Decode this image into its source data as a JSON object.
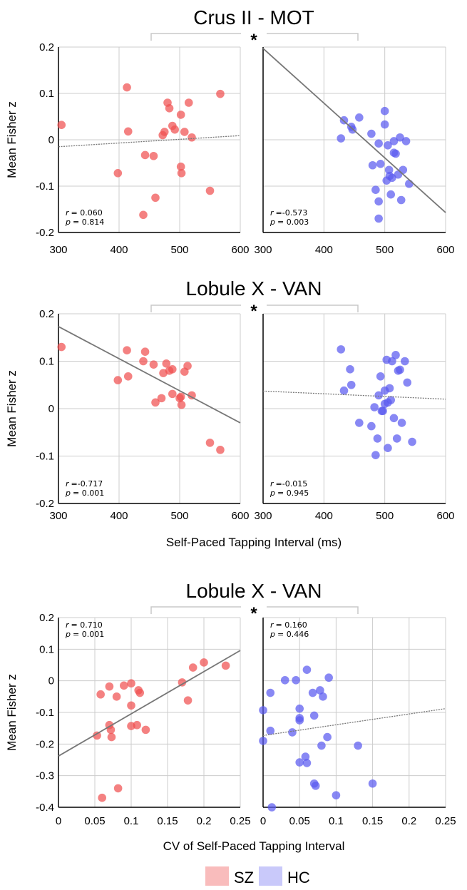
{
  "legend": [
    {
      "label": "SZ",
      "color": "#f9bcbc"
    },
    {
      "label": "HC",
      "color": "#c9c9fa"
    }
  ],
  "colors": {
    "SZ": "#f05050",
    "HC": "#5a5af0",
    "fit_line": "#777777",
    "grid": "#cccccc",
    "bracket": "#c8c8c8"
  },
  "star": "*",
  "chart_data": [
    {
      "type": "scatter",
      "title": "Crus II - MOT",
      "ylabel": "Mean Fisher z",
      "xlabel": "",
      "xlim": [
        300,
        600
      ],
      "ylim": [
        -0.2,
        0.2
      ],
      "xticks": [
        "300",
        "400",
        "500",
        "600"
      ],
      "yticks": [
        "0.2",
        "0.1",
        "0",
        "-0.1",
        "-0.2"
      ],
      "grid": true,
      "significance": "*",
      "panels": [
        {
          "group": "SZ",
          "r_label": "r",
          "r_value": "= 0.060",
          "p_label": "p",
          "p_value": "= 0.814",
          "fit": {
            "x": [
              300,
              600
            ],
            "y": [
              -0.015,
              0.009
            ],
            "style": "dotted"
          },
          "points": [
            [
              305,
              0.032
            ],
            [
              398,
              -0.072
            ],
            [
              413,
              0.113
            ],
            [
              415,
              0.018
            ],
            [
              440,
              -0.162
            ],
            [
              443,
              -0.033
            ],
            [
              457,
              -0.035
            ],
            [
              460,
              -0.125
            ],
            [
              472,
              0.01
            ],
            [
              475,
              0.017
            ],
            [
              480,
              0.08
            ],
            [
              483,
              0.068
            ],
            [
              488,
              0.03
            ],
            [
              492,
              0.022
            ],
            [
              502,
              0.054
            ],
            [
              502,
              -0.058
            ],
            [
              503,
              -0.072
            ],
            [
              508,
              0.017
            ],
            [
              515,
              0.08
            ],
            [
              520,
              0.005
            ],
            [
              550,
              -0.11
            ],
            [
              567,
              0.099
            ]
          ]
        },
        {
          "group": "HC",
          "r_label": "r",
          "r_value": "=-0.573",
          "p_label": "p",
          "p_value": "= 0.003",
          "fit": {
            "x": [
              300,
              600
            ],
            "y": [
              0.197,
              -0.157
            ],
            "style": "solid"
          },
          "points": [
            [
              428,
              0.003
            ],
            [
              433,
              0.042
            ],
            [
              445,
              0.028
            ],
            [
              447,
              0.022
            ],
            [
              458,
              0.048
            ],
            [
              478,
              0.013
            ],
            [
              480,
              -0.055
            ],
            [
              485,
              -0.108
            ],
            [
              490,
              -0.008
            ],
            [
              490,
              -0.133
            ],
            [
              490,
              -0.17
            ],
            [
              493,
              -0.052
            ],
            [
              500,
              0.062
            ],
            [
              500,
              0.033
            ],
            [
              503,
              -0.088
            ],
            [
              505,
              -0.012
            ],
            [
              507,
              -0.065
            ],
            [
              508,
              -0.078
            ],
            [
              510,
              -0.118
            ],
            [
              512,
              -0.082
            ],
            [
              515,
              -0.003
            ],
            [
              515,
              -0.028
            ],
            [
              518,
              -0.03
            ],
            [
              522,
              -0.075
            ],
            [
              525,
              0.005
            ],
            [
              527,
              -0.13
            ],
            [
              530,
              -0.065
            ],
            [
              535,
              -0.003
            ],
            [
              540,
              -0.095
            ]
          ]
        }
      ]
    },
    {
      "type": "scatter",
      "title": "Lobule X - VAN",
      "ylabel": "Mean Fisher z",
      "xlabel": "Self-Paced Tapping Interval (ms)",
      "xlim": [
        300,
        600
      ],
      "ylim": [
        -0.2,
        0.2
      ],
      "xticks": [
        "300",
        "400",
        "500",
        "600"
      ],
      "yticks": [
        "0.2",
        "0.1",
        "0",
        "-0.1",
        "-0.2"
      ],
      "grid": true,
      "significance": "*",
      "panels": [
        {
          "group": "SZ",
          "r_label": "r",
          "r_value": "=-0.717",
          "p_label": "p",
          "p_value": "= 0.001",
          "fit": {
            "x": [
              300,
              600
            ],
            "y": [
              0.173,
              -0.03
            ],
            "style": "solid"
          },
          "points": [
            [
              305,
              0.13
            ],
            [
              398,
              0.06
            ],
            [
              413,
              0.123
            ],
            [
              415,
              0.068
            ],
            [
              440,
              0.1
            ],
            [
              443,
              0.12
            ],
            [
              457,
              0.093
            ],
            [
              460,
              0.013
            ],
            [
              470,
              0.022
            ],
            [
              473,
              0.075
            ],
            [
              478,
              0.095
            ],
            [
              483,
              0.08
            ],
            [
              488,
              0.083
            ],
            [
              488,
              0.031
            ],
            [
              500,
              0.022
            ],
            [
              502,
              0.025
            ],
            [
              503,
              0.008
            ],
            [
              508,
              0.078
            ],
            [
              513,
              0.09
            ],
            [
              520,
              0.028
            ],
            [
              550,
              -0.072
            ],
            [
              567,
              -0.087
            ]
          ]
        },
        {
          "group": "HC",
          "r_label": "r",
          "r_value": "=-0.015",
          "p_label": "p",
          "p_value": "= 0.945",
          "fit": {
            "x": [
              300,
              600
            ],
            "y": [
              0.037,
              0.02
            ],
            "style": "dotted"
          },
          "points": [
            [
              428,
              0.125
            ],
            [
              433,
              0.038
            ],
            [
              443,
              0.083
            ],
            [
              445,
              0.05
            ],
            [
              458,
              -0.03
            ],
            [
              478,
              -0.037
            ],
            [
              483,
              0.003
            ],
            [
              485,
              -0.098
            ],
            [
              488,
              -0.063
            ],
            [
              490,
              0.028
            ],
            [
              493,
              0.068
            ],
            [
              495,
              -0.005
            ],
            [
              497,
              -0.005
            ],
            [
              500,
              0.038
            ],
            [
              500,
              0.01
            ],
            [
              503,
              0.103
            ],
            [
              505,
              0.013
            ],
            [
              505,
              -0.083
            ],
            [
              508,
              0.043
            ],
            [
              510,
              0.018
            ],
            [
              512,
              0.1
            ],
            [
              515,
              -0.02
            ],
            [
              518,
              0.113
            ],
            [
              520,
              -0.063
            ],
            [
              522,
              0.08
            ],
            [
              525,
              0.082
            ],
            [
              528,
              -0.03
            ],
            [
              533,
              0.1
            ],
            [
              537,
              0.055
            ],
            [
              545,
              -0.07
            ]
          ]
        }
      ]
    },
    {
      "type": "scatter",
      "title": "Lobule X - VAN",
      "ylabel": "Mean Fisher z",
      "xlabel": "CV of Self-Paced Tapping Interval",
      "xlim": [
        0,
        0.25
      ],
      "ylim": [
        -0.4,
        0.2
      ],
      "xticks": [
        "0",
        "0.05",
        "0.1",
        "0.15",
        "0.2",
        "0.25"
      ],
      "yticks": [
        "0.2",
        "0.1",
        "0",
        "-0.1",
        "-0.2",
        "-0.3",
        "-0.4"
      ],
      "grid": true,
      "significance": "*",
      "panels": [
        {
          "group": "SZ",
          "r_label": "r",
          "r_value": "= 0.710",
          "p_label": "p",
          "p_value": "= 0.001",
          "fit": {
            "x": [
              0,
              0.25
            ],
            "y": [
              -0.238,
              0.096
            ],
            "style": "solid"
          },
          "points": [
            [
              0.053,
              -0.173
            ],
            [
              0.058,
              -0.043
            ],
            [
              0.06,
              -0.37
            ],
            [
              0.07,
              -0.018
            ],
            [
              0.07,
              -0.14
            ],
            [
              0.072,
              -0.155
            ],
            [
              0.073,
              -0.178
            ],
            [
              0.08,
              -0.05
            ],
            [
              0.082,
              -0.34
            ],
            [
              0.09,
              -0.015
            ],
            [
              0.1,
              -0.008
            ],
            [
              0.1,
              -0.078
            ],
            [
              0.1,
              -0.143
            ],
            [
              0.108,
              -0.14
            ],
            [
              0.11,
              -0.03
            ],
            [
              0.112,
              -0.038
            ],
            [
              0.12,
              -0.155
            ],
            [
              0.17,
              -0.005
            ],
            [
              0.178,
              -0.062
            ],
            [
              0.185,
              0.042
            ],
            [
              0.2,
              0.058
            ],
            [
              0.23,
              0.048
            ]
          ]
        },
        {
          "group": "HC",
          "r_label": "r",
          "r_value": "= 0.160",
          "p_label": "p",
          "p_value": "= 0.446",
          "fit": {
            "x": [
              0,
              0.25
            ],
            "y": [
              -0.173,
              -0.088
            ],
            "style": "dotted"
          },
          "points": [
            [
              0.0,
              -0.093
            ],
            [
              0.0,
              -0.19
            ],
            [
              0.01,
              -0.038
            ],
            [
              0.01,
              -0.158
            ],
            [
              0.012,
              -0.4
            ],
            [
              0.03,
              0.002
            ],
            [
              0.04,
              -0.163
            ],
            [
              0.045,
              0.002
            ],
            [
              0.05,
              -0.088
            ],
            [
              0.05,
              -0.118
            ],
            [
              0.05,
              -0.125
            ],
            [
              0.05,
              -0.258
            ],
            [
              0.058,
              -0.24
            ],
            [
              0.06,
              0.035
            ],
            [
              0.06,
              -0.26
            ],
            [
              0.068,
              -0.038
            ],
            [
              0.07,
              -0.11
            ],
            [
              0.07,
              -0.325
            ],
            [
              0.072,
              -0.332
            ],
            [
              0.078,
              -0.03
            ],
            [
              0.08,
              -0.205
            ],
            [
              0.082,
              -0.05
            ],
            [
              0.088,
              -0.178
            ],
            [
              0.09,
              0.01
            ],
            [
              0.1,
              -0.362
            ],
            [
              0.13,
              -0.205
            ],
            [
              0.15,
              -0.325
            ]
          ]
        }
      ]
    }
  ]
}
